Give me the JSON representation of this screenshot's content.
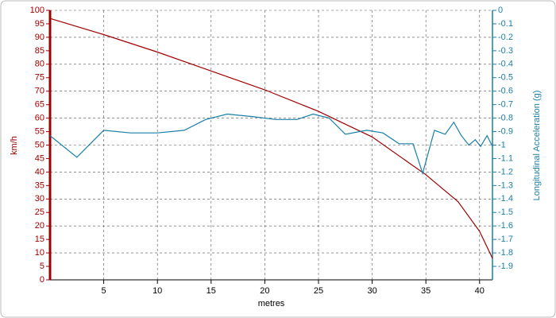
{
  "chart_data": {
    "type": "line",
    "x_label": "metres",
    "y_label": "km/h",
    "y2_label": "Longitudinal Acceleration (g)",
    "xlim": [
      0,
      41.2
    ],
    "xticks": [
      5,
      10,
      15,
      20,
      25,
      30,
      35,
      40
    ],
    "ylim": [
      0,
      100
    ],
    "yticks": [
      0,
      5,
      10,
      15,
      20,
      25,
      30,
      35,
      40,
      45,
      50,
      55,
      60,
      65,
      70,
      75,
      80,
      85,
      90,
      95,
      100
    ],
    "y2lim": [
      -2,
      0
    ],
    "y2ticks": [
      0,
      -0.1,
      -0.2,
      -0.3,
      -0.4,
      -0.5,
      -0.6,
      -0.7,
      -0.8,
      -0.9,
      -1,
      -1.1,
      -1.2,
      -1.3,
      -1.4,
      -1.5,
      -1.6,
      -1.7,
      -1.8,
      -1.9
    ],
    "grid": true,
    "y_color": "#a00000",
    "y2_color": "#1a7fa8",
    "series": [
      {
        "color": "#a00000",
        "x": [
          0,
          5,
          10,
          15,
          20,
          25,
          30,
          35,
          38,
          40,
          41.2
        ],
        "values": [
          97,
          91,
          84.5,
          77.5,
          70.5,
          62.5,
          53,
          39,
          29,
          18,
          8
        ]
      },
      {
        "color": "#1a7fa8",
        "axis": "y2",
        "x": [
          0,
          2.5,
          5,
          7.5,
          10,
          12.5,
          14.5,
          16.5,
          19,
          21,
          23,
          24.5,
          26,
          27.5,
          29.5,
          31,
          32.5,
          33.8,
          34.7,
          35.8,
          36.8,
          37.6,
          38.3,
          39,
          39.6,
          40.1,
          40.7,
          41.2
        ],
        "values": [
          -0.93,
          -1.09,
          -0.89,
          -0.91,
          -0.91,
          -0.89,
          -0.81,
          -0.77,
          -0.79,
          -0.81,
          -0.81,
          -0.77,
          -0.8,
          -0.92,
          -0.89,
          -0.91,
          -0.99,
          -0.99,
          -1.21,
          -0.89,
          -0.92,
          -0.83,
          -0.93,
          -1.0,
          -0.96,
          -1.01,
          -0.93,
          -1.01
        ]
      }
    ]
  }
}
